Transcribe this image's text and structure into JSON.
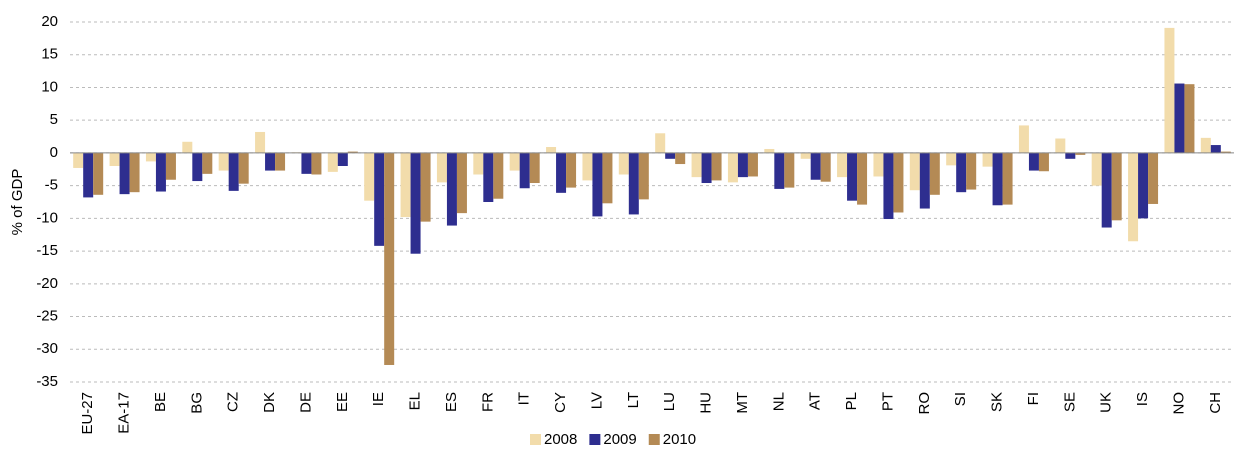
{
  "chart_data": {
    "type": "bar",
    "y_label": "% of GDP",
    "categories": [
      "EU-27",
      "EA-17",
      "BE",
      "BG",
      "CZ",
      "DK",
      "DE",
      "EE",
      "IE",
      "EL",
      "ES",
      "FR",
      "IT",
      "CY",
      "LV",
      "LT",
      "LU",
      "HU",
      "MT",
      "NL",
      "AT",
      "PL",
      "PT",
      "RO",
      "SI",
      "SK",
      "FI",
      "SE",
      "UK",
      "IS",
      "NO",
      "CH"
    ],
    "series": [
      {
        "name": "2008",
        "color": "#f2dcab",
        "values": [
          -2.3,
          -2.0,
          -1.3,
          1.7,
          -2.7,
          3.2,
          0.1,
          -2.9,
          -7.3,
          -9.8,
          -4.5,
          -3.3,
          -2.7,
          0.9,
          -4.2,
          -3.3,
          3.0,
          -3.7,
          -4.5,
          0.6,
          -0.9,
          -3.7,
          -3.6,
          -5.7,
          -1.9,
          -2.1,
          4.2,
          2.2,
          -5.0,
          -13.5,
          19.1,
          2.3
        ]
      },
      {
        "name": "2009",
        "color": "#2e2e8f",
        "values": [
          -6.8,
          -6.3,
          -5.9,
          -4.3,
          -5.8,
          -2.7,
          -3.2,
          -2.0,
          -14.2,
          -15.4,
          -11.1,
          -7.5,
          -5.4,
          -6.1,
          -9.7,
          -9.4,
          -0.9,
          -4.6,
          -3.7,
          -5.5,
          -4.1,
          -7.3,
          -10.1,
          -8.5,
          -6.0,
          -8.0,
          -2.7,
          -0.9,
          -11.4,
          -10.0,
          10.6,
          1.2
        ]
      },
      {
        "name": "2010",
        "color": "#b48a55",
        "values": [
          -6.4,
          -6.0,
          -4.1,
          -3.2,
          -4.7,
          -2.7,
          -3.3,
          0.2,
          -32.4,
          -10.5,
          -9.2,
          -7.0,
          -4.6,
          -5.3,
          -7.7,
          -7.1,
          -1.7,
          -4.2,
          -3.6,
          -5.3,
          -4.4,
          -7.9,
          -9.1,
          -6.4,
          -5.6,
          -7.9,
          -2.8,
          -0.3,
          -10.3,
          -7.8,
          10.5,
          0.2
        ]
      }
    ],
    "ylim": [
      -35,
      20
    ],
    "yticks": [
      -35,
      -30,
      -25,
      -20,
      -15,
      -10,
      -5,
      0,
      5,
      10,
      15,
      20
    ],
    "grid": true,
    "legend": "bottom"
  }
}
